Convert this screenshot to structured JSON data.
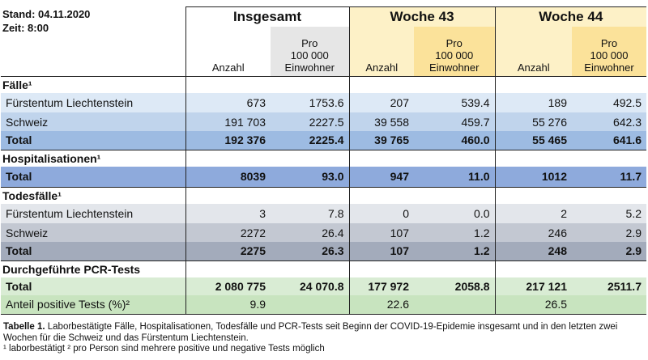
{
  "header": {
    "stand": "Stand: 04.11.2020",
    "zeit": "Zeit: 8:00",
    "groups": [
      {
        "title": "Insgesamt",
        "cols": [
          [
            "Anzahl"
          ],
          [
            "Pro",
            "100 000",
            "Einwohner"
          ]
        ]
      },
      {
        "title": "Woche 43",
        "cols": [
          [
            "Anzahl"
          ],
          [
            "Pro",
            "100 000",
            "Einwohner"
          ]
        ]
      },
      {
        "title": "Woche 44",
        "cols": [
          [
            "Anzahl"
          ],
          [
            "Pro",
            "100 000",
            "Einwohner"
          ]
        ]
      }
    ]
  },
  "sections": [
    {
      "title": "Fälle¹",
      "rows": [
        {
          "label": "Fürstentum Liechtenstein",
          "values": [
            "673",
            "1753.6",
            "207",
            "539.4",
            "189",
            "492.5"
          ]
        },
        {
          "label": "Schweiz",
          "values": [
            "191 703",
            "2227.5",
            "39 558",
            "459.7",
            "55 276",
            "642.3"
          ]
        },
        {
          "label": "Total",
          "values": [
            "192 376",
            "2225.4",
            "39 765",
            "460.0",
            "55 465",
            "641.6"
          ]
        }
      ]
    },
    {
      "title": "Hospitalisationen¹",
      "rows": [
        {
          "label": "Total",
          "values": [
            "8039",
            "93.0",
            "947",
            "11.0",
            "1012",
            "11.7"
          ]
        }
      ]
    },
    {
      "title": "Todesfälle¹",
      "rows": [
        {
          "label": "Fürstentum Liechtenstein",
          "values": [
            "3",
            "7.8",
            "0",
            "0.0",
            "2",
            "5.2"
          ]
        },
        {
          "label": "Schweiz",
          "values": [
            "2272",
            "26.4",
            "107",
            "1.2",
            "246",
            "2.9"
          ]
        },
        {
          "label": "Total",
          "values": [
            "2275",
            "26.3",
            "107",
            "1.2",
            "248",
            "2.9"
          ]
        }
      ]
    },
    {
      "title": "Durchgeführte PCR-Tests",
      "rows": [
        {
          "label": "Total",
          "values": [
            "2 080 775",
            "24 070.8",
            "177 972",
            "2058.8",
            "217 121",
            "2511.7"
          ]
        },
        {
          "label": "Anteil positive Tests (%)²",
          "values": [
            "9.9",
            "22.6",
            "26.5"
          ]
        }
      ]
    }
  ],
  "caption": {
    "label": "Tabelle 1.",
    "text": "Laborbestätigte Fälle, Hospitalisationen, Todesfälle und PCR-Tests seit Beginn der COVID-19-Epidemie insgesamt und in den letzten zwei Wochen für die Schweiz und das Fürstentum Liechtenstein.",
    "footnote": "¹ laborbestätigt  ² pro Person sind mehrere positive und negative Tests möglich"
  }
}
